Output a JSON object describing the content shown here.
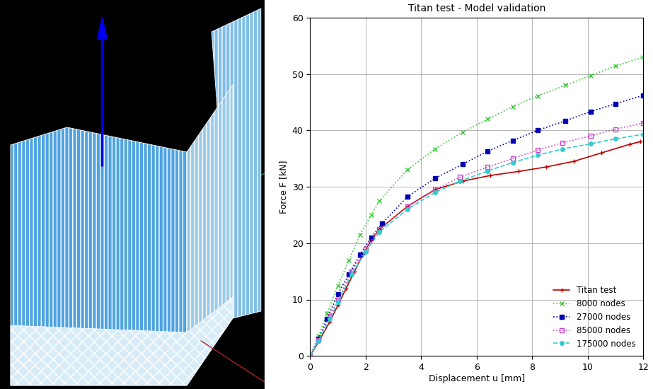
{
  "chart_data": {
    "type": "line",
    "title": "Titan test - Model validation",
    "x_label": "Displacement u [mm]",
    "y_label": "Force F [kN]",
    "xlim": [
      0,
      12
    ],
    "xticks": [
      0,
      2,
      4,
      6,
      8,
      10,
      12
    ],
    "ylim": [
      0,
      60
    ],
    "yticks": [
      0,
      10,
      20,
      30,
      40,
      50,
      60
    ],
    "grid": true,
    "legend": "lower right",
    "series": [
      {
        "name": "Titan test",
        "color": "#c00000",
        "marker": "+",
        "line_style": "solid",
        "x": [
          0,
          0.3,
          0.7,
          1.0,
          1.3,
          1.6,
          1.9,
          2.2,
          2.5,
          3.5,
          4.5,
          5.5,
          6.5,
          7.5,
          8.5,
          9.5,
          10.5,
          11.5,
          11.9
        ],
        "values": [
          0,
          2.5,
          6,
          9,
          12,
          15,
          18,
          20.5,
          22.5,
          26.5,
          29.5,
          31,
          32,
          32.7,
          33.5,
          34.5,
          36,
          37.5,
          38
        ]
      },
      {
        "name": "8000 nodes",
        "color": "#33cc33",
        "marker": "x",
        "line_style": "dotted",
        "x": [
          0,
          0.3,
          0.6,
          1.0,
          1.4,
          1.8,
          2.2,
          2.5,
          3.5,
          4.5,
          5.5,
          6.4,
          7.3,
          8.2,
          9.2,
          10.1,
          11.0,
          12.0
        ],
        "values": [
          0,
          3.5,
          7.5,
          12.5,
          17,
          21.5,
          25,
          27.5,
          33,
          36.7,
          39.7,
          42,
          44.2,
          46.1,
          48,
          49.7,
          51.4,
          53
        ]
      },
      {
        "name": "27000 nodes",
        "color": "#0000b3",
        "marker": "square",
        "line_style": "dotted",
        "x": [
          0,
          0.3,
          0.6,
          1.0,
          1.4,
          1.8,
          2.2,
          2.6,
          3.5,
          4.5,
          5.5,
          6.4,
          7.3,
          8.2,
          9.2,
          10.1,
          11.0,
          12.0
        ],
        "values": [
          0,
          3,
          6.5,
          11,
          14.5,
          18,
          21,
          23.5,
          28.2,
          31.5,
          34,
          36.3,
          38.2,
          40,
          41.7,
          43.3,
          44.7,
          46.2
        ]
      },
      {
        "name": "85000 nodes",
        "color": "#cc44cc",
        "marker": "open_square",
        "line_style": "dotted",
        "x": [
          0,
          0.3,
          0.7,
          1.0,
          1.5,
          2.0,
          2.5,
          3.5,
          4.5,
          5.4,
          6.4,
          7.3,
          8.2,
          9.1,
          10.1,
          11.0,
          12.0
        ],
        "values": [
          0,
          2.8,
          7,
          10,
          15,
          19,
          22.5,
          26.5,
          29.5,
          31.7,
          33.5,
          35,
          36.5,
          37.8,
          39,
          40.2,
          41.3
        ]
      },
      {
        "name": "175000 nodes",
        "color": "#33cccc",
        "marker": "circle",
        "line_style": "dashed",
        "x": [
          0,
          0.3,
          0.7,
          1.0,
          1.5,
          2.0,
          2.5,
          3.5,
          4.5,
          5.4,
          6.4,
          7.3,
          8.2,
          9.1,
          10.1,
          11.0,
          12.0
        ],
        "values": [
          0,
          2.7,
          6.5,
          9.5,
          14.5,
          18.5,
          22,
          26,
          29,
          31,
          32.8,
          34.3,
          35.6,
          36.7,
          37.6,
          38.5,
          39.3
        ]
      }
    ]
  }
}
